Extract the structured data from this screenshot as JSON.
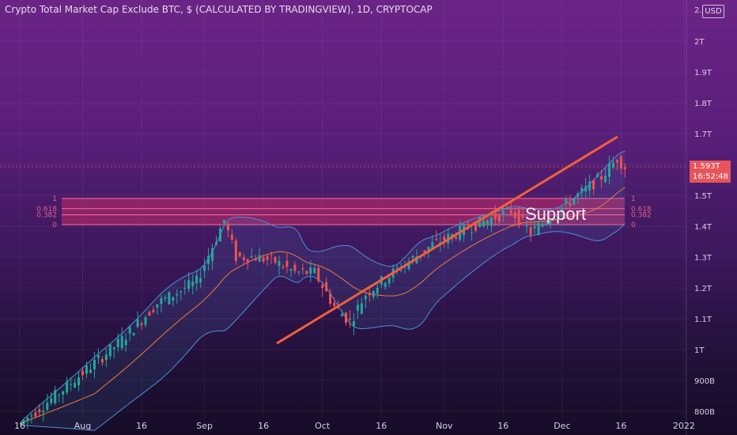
{
  "title": "Crypto Total Market Cap Exclude BTC, $ (CALCULATED BY TRADINGVIEW), 1D, CRYPTOCAP",
  "currency_button": "USD",
  "price_tag": {
    "price": "1.593T",
    "countdown": "16:52:48"
  },
  "top_tick_partial": "2.",
  "annotation": "Support",
  "colors": {
    "up": "#26a69a",
    "down": "#ef5350",
    "band": "#4a90d9",
    "support_zone": "#e0306a",
    "trend": "#f0603a"
  },
  "chart_data": {
    "type": "candlestick",
    "y_ticks": [
      "800B",
      "900B",
      "1T",
      "1.1T",
      "1.2T",
      "1.3T",
      "1.4T",
      "1.5T",
      "1.6T",
      "1.7T",
      "1.8T",
      "1.9T",
      "2T"
    ],
    "y_tick_values": [
      800,
      900,
      1000,
      1100,
      1200,
      1300,
      1400,
      1500,
      1600,
      1700,
      1800,
      1900,
      2000
    ],
    "x_ticks": [
      "16",
      "Aug",
      "16",
      "Sep",
      "16",
      "Oct",
      "16",
      "Nov",
      "16",
      "Dec",
      "16",
      "2022"
    ],
    "fib_levels": [
      {
        "label": "1",
        "value": 1490
      },
      {
        "label": "0.618",
        "value": 1457
      },
      {
        "label": "0.382",
        "value": 1437
      },
      {
        "label": "0",
        "value": 1405
      }
    ],
    "trendline": {
      "start": {
        "date": "Sep 21",
        "value": 1020
      },
      "end": {
        "date": "Dec 20",
        "value": 1690
      }
    },
    "last_price": 1593
  }
}
